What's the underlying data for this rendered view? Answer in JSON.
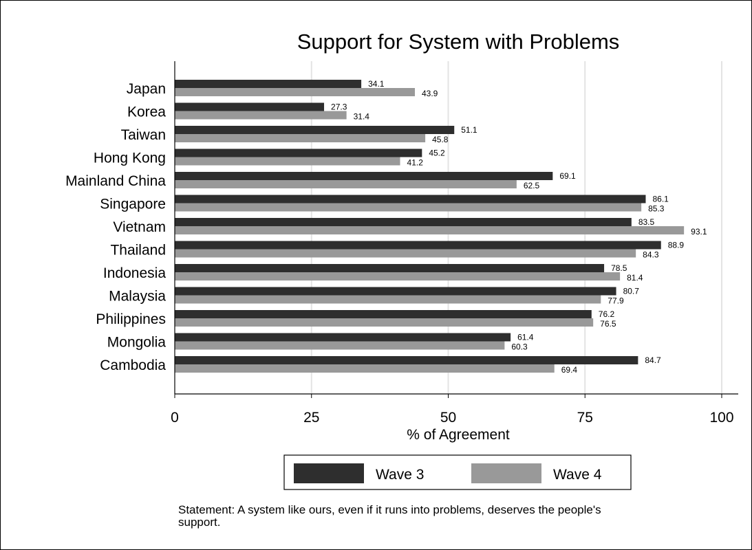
{
  "chart_data": {
    "type": "bar",
    "orientation": "horizontal",
    "title": "Support for System with Problems",
    "xlabel": "% of Agreement",
    "ylabel": "",
    "xlim": [
      0,
      100
    ],
    "xticks": [
      0,
      25,
      50,
      75,
      100
    ],
    "grid": true,
    "legend_position": "bottom",
    "categories": [
      "Japan",
      "Korea",
      "Taiwan",
      "Hong Kong",
      "Mainland China",
      "Singapore",
      "Vietnam",
      "Thailand",
      "Indonesia",
      "Malaysia",
      "Philippines",
      "Mongolia",
      "Cambodia"
    ],
    "series": [
      {
        "name": "Wave 3",
        "color": "#2e2e2e",
        "values": [
          34.1,
          27.3,
          51.1,
          45.2,
          69.1,
          86.1,
          83.5,
          88.9,
          78.5,
          80.7,
          76.2,
          61.4,
          84.7
        ]
      },
      {
        "name": "Wave 4",
        "color": "#999999",
        "values": [
          43.9,
          31.4,
          45.8,
          41.2,
          62.5,
          85.3,
          93.1,
          84.3,
          81.4,
          77.9,
          76.5,
          60.3,
          69.4
        ]
      }
    ],
    "note": [
      "Statement: A system like ours, even if it runs into problems, deserves the people's",
      "support."
    ]
  }
}
